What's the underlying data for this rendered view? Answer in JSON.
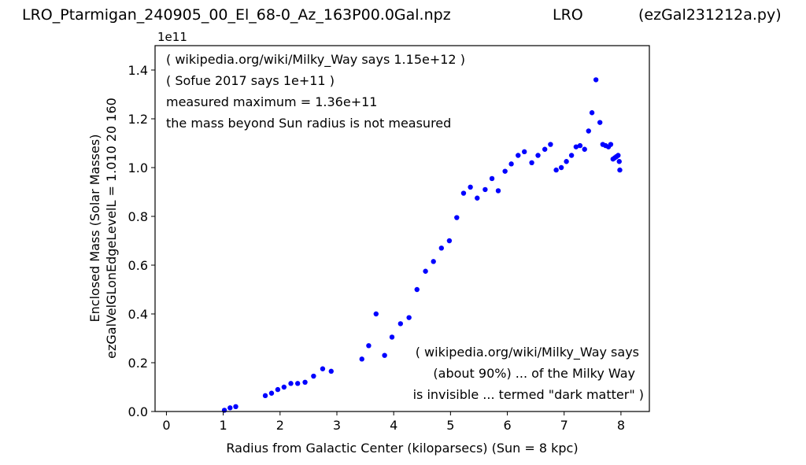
{
  "header": {
    "left": "LRO_Ptarmigan_240905_00_El_68-0_Az_163P00.0Gal.npz",
    "middle": "LRO",
    "right": "(ezGal231212a.py)"
  },
  "chart_data": {
    "type": "scatter",
    "title": "",
    "xlabel": "Radius from Galactic Center (kiloparsecs)  (Sun = 8 kpc)",
    "ylabel_lines": [
      "Enclosed Mass (Solar Masses)",
      "ezGalVelGLonEdgeLevelL = 1.010  20  160"
    ],
    "y_offset_label": "1e11",
    "xlim": [
      -0.2,
      8.5
    ],
    "ylim": [
      0,
      1.5
    ],
    "xticks": [
      0,
      1,
      2,
      3,
      4,
      5,
      6,
      7,
      8
    ],
    "xtick_labels": [
      "0",
      "1",
      "2",
      "3",
      "4",
      "5",
      "6",
      "7",
      "8"
    ],
    "yticks": [
      0,
      0.2,
      0.4,
      0.6,
      0.8,
      1.0,
      1.2,
      1.4
    ],
    "ytick_labels": [
      "0.0",
      "0.2",
      "0.4",
      "0.6",
      "0.8",
      "1.0",
      "1.2",
      "1.4"
    ],
    "grid": false,
    "series": [
      {
        "color": "#0000ff",
        "marker": "dot",
        "x": [
          1.02,
          1.12,
          1.22,
          1.74,
          1.85,
          1.96,
          2.07,
          2.19,
          2.31,
          2.44,
          2.59,
          2.75,
          2.9,
          3.44,
          3.56,
          3.69,
          3.84,
          3.97,
          4.12,
          4.27,
          4.41,
          4.56,
          4.7,
          4.84,
          4.98,
          5.11,
          5.23,
          5.35,
          5.47,
          5.61,
          5.73,
          5.84,
          5.96,
          6.07,
          6.19,
          6.3,
          6.43,
          6.54,
          6.66,
          6.76,
          6.86,
          6.95,
          7.04,
          7.13,
          7.21,
          7.28,
          7.36,
          7.43,
          7.49,
          7.56,
          7.63,
          7.68,
          7.73,
          7.78,
          7.82,
          7.86,
          7.89,
          7.92,
          7.95,
          7.97,
          7.98
        ],
        "y": [
          0.005,
          0.015,
          0.02,
          0.065,
          0.075,
          0.09,
          0.1,
          0.115,
          0.115,
          0.12,
          0.145,
          0.175,
          0.165,
          0.215,
          0.27,
          0.4,
          0.23,
          0.305,
          0.36,
          0.385,
          0.5,
          0.575,
          0.615,
          0.67,
          0.7,
          0.795,
          0.895,
          0.92,
          0.875,
          0.91,
          0.955,
          0.905,
          0.985,
          1.015,
          1.05,
          1.065,
          1.02,
          1.05,
          1.075,
          1.095,
          0.99,
          1.0,
          1.025,
          1.05,
          1.085,
          1.09,
          1.075,
          1.15,
          1.225,
          1.36,
          1.185,
          1.095,
          1.09,
          1.085,
          1.095,
          1.035,
          1.04,
          1.045,
          1.05,
          1.025,
          0.99
        ]
      }
    ],
    "annotations": {
      "top_left": [
        "( wikipedia.org/wiki/Milky_Way says 1.15e+12 )",
        "( Sofue 2017 says 1e+11 )",
        "measured maximum = 1.36e+11",
        "the mass beyond Sun radius is not measured"
      ],
      "bottom_right": [
        "( wikipedia.org/wiki/Milky_Way says",
        "(about 90%) ... of the Milky Way",
        "is invisible ... termed \"dark matter\" )"
      ]
    }
  }
}
